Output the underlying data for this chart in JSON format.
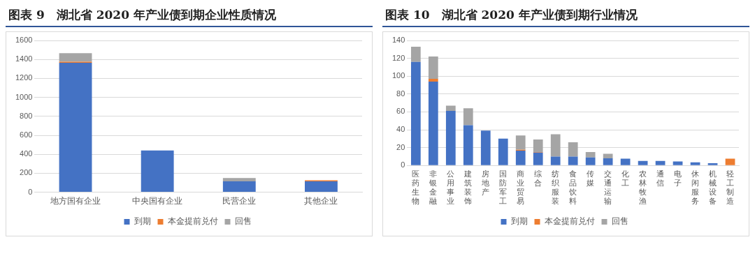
{
  "chart_data": [
    {
      "type": "bar",
      "title": "图表 9　湖北省 2020 年产业债到期企业性质情况",
      "categories": [
        "地方国有企业",
        "中央国有企业",
        "民营企业",
        "其他企业"
      ],
      "stacked": true,
      "grid": "y",
      "legend": "bottom",
      "ylim": [
        0,
        1600
      ],
      "yticks": [
        0,
        200,
        400,
        600,
        800,
        1000,
        1200,
        1400,
        1600
      ],
      "series": [
        {
          "name": "到期",
          "color": "#4472c4",
          "values": [
            1365,
            440,
            115,
            115
          ]
        },
        {
          "name": "本金提前兑付",
          "color": "#ed7d31",
          "values": [
            10,
            0,
            0,
            10
          ]
        },
        {
          "name": "回售",
          "color": "#a5a5a5",
          "values": [
            90,
            0,
            35,
            null
          ]
        }
      ]
    },
    {
      "type": "bar",
      "title": "图表 10　湖北省 2020 年产业债到期行业情况",
      "categories": [
        "医药生物",
        "非银金融",
        "公用事业",
        "建筑装饰",
        "房地产",
        "国防军工",
        "商业贸易",
        "综合",
        "纺织服装",
        "食品饮料",
        "传媒",
        "交通运输",
        "化工",
        "农林牧渔",
        "通信",
        "电子",
        "休闲服务",
        "机械设备",
        "轻工制造"
      ],
      "stacked": true,
      "grid": "y",
      "legend": "bottom",
      "ylim": [
        0,
        140
      ],
      "yticks": [
        0,
        20,
        40,
        60,
        80,
        100,
        120,
        140
      ],
      "series": [
        {
          "name": "到期",
          "color": "#4472c4",
          "values": [
            116,
            94,
            61,
            45,
            39,
            30,
            16.5,
            14.5,
            10,
            10,
            9,
            8,
            7.5,
            5,
            5,
            4.5,
            3.5,
            2.5,
            0
          ]
        },
        {
          "name": "本金提前兑付",
          "color": "#ed7d31",
          "values": [
            0,
            3,
            0,
            null,
            0,
            0,
            1,
            0.5,
            0,
            0,
            0,
            0,
            0,
            0,
            0,
            0,
            0,
            0,
            7.5
          ]
        },
        {
          "name": "回售",
          "color": "#a5a5a5",
          "values": [
            17,
            25,
            6,
            19,
            0,
            0,
            16,
            14,
            25,
            16,
            6,
            5,
            0,
            0,
            0,
            0,
            0,
            0,
            0
          ]
        }
      ]
    }
  ]
}
